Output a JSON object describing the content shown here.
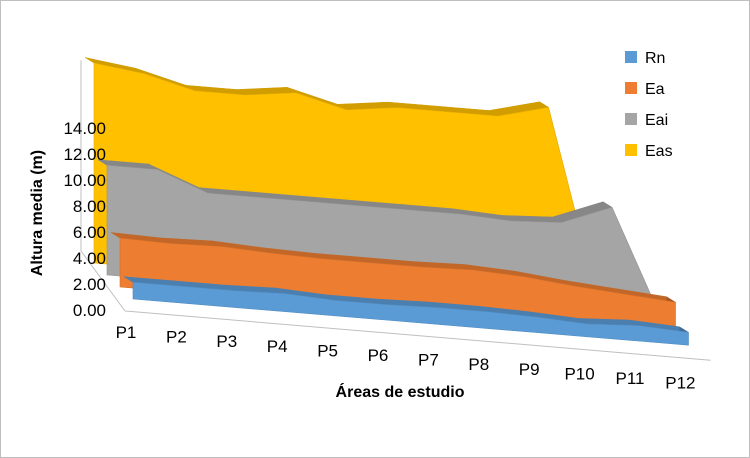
{
  "chart_data": {
    "type": "area",
    "view": "3d",
    "categories": [
      "P1",
      "P2",
      "P3",
      "P4",
      "P5",
      "P6",
      "P7",
      "P8",
      "P9",
      "P10",
      "P11",
      "P12"
    ],
    "series": [
      {
        "name": "Rn",
        "color": "#5b9bd5",
        "values": [
          1.3,
          1.3,
          1.3,
          1.4,
          1.2,
          1.2,
          1.3,
          1.3,
          1.2,
          1.0,
          1.2,
          1.0
        ]
      },
      {
        "name": "Ea",
        "color": "#ed7d31",
        "values": [
          3.8,
          3.7,
          3.8,
          3.6,
          3.5,
          3.5,
          3.5,
          3.6,
          3.4,
          3.0,
          2.7,
          2.4
        ]
      },
      {
        "name": "Eai",
        "color": "#a5a5a5",
        "values": [
          8.5,
          8.5,
          7.0,
          7.0,
          7.0,
          7.0,
          7.0,
          7.0,
          6.8,
          7.0,
          8.5,
          0.0
        ]
      },
      {
        "name": "Eas",
        "color": "#ffc000",
        "values": [
          15.5,
          15.0,
          14.0,
          14.0,
          14.5,
          13.5,
          14.0,
          14.0,
          14.0,
          15.0,
          0.0,
          0.0
        ]
      }
    ],
    "y_ticks": [
      "0.00",
      "2.00",
      "4.00",
      "6.00",
      "8.00",
      "10.00",
      "12.00",
      "14.00"
    ],
    "ylim": [
      0,
      14
    ],
    "xlabel": "Áreas de estudio",
    "ylabel": "Altura media (m)",
    "legend_position": "right",
    "grid": false
  }
}
